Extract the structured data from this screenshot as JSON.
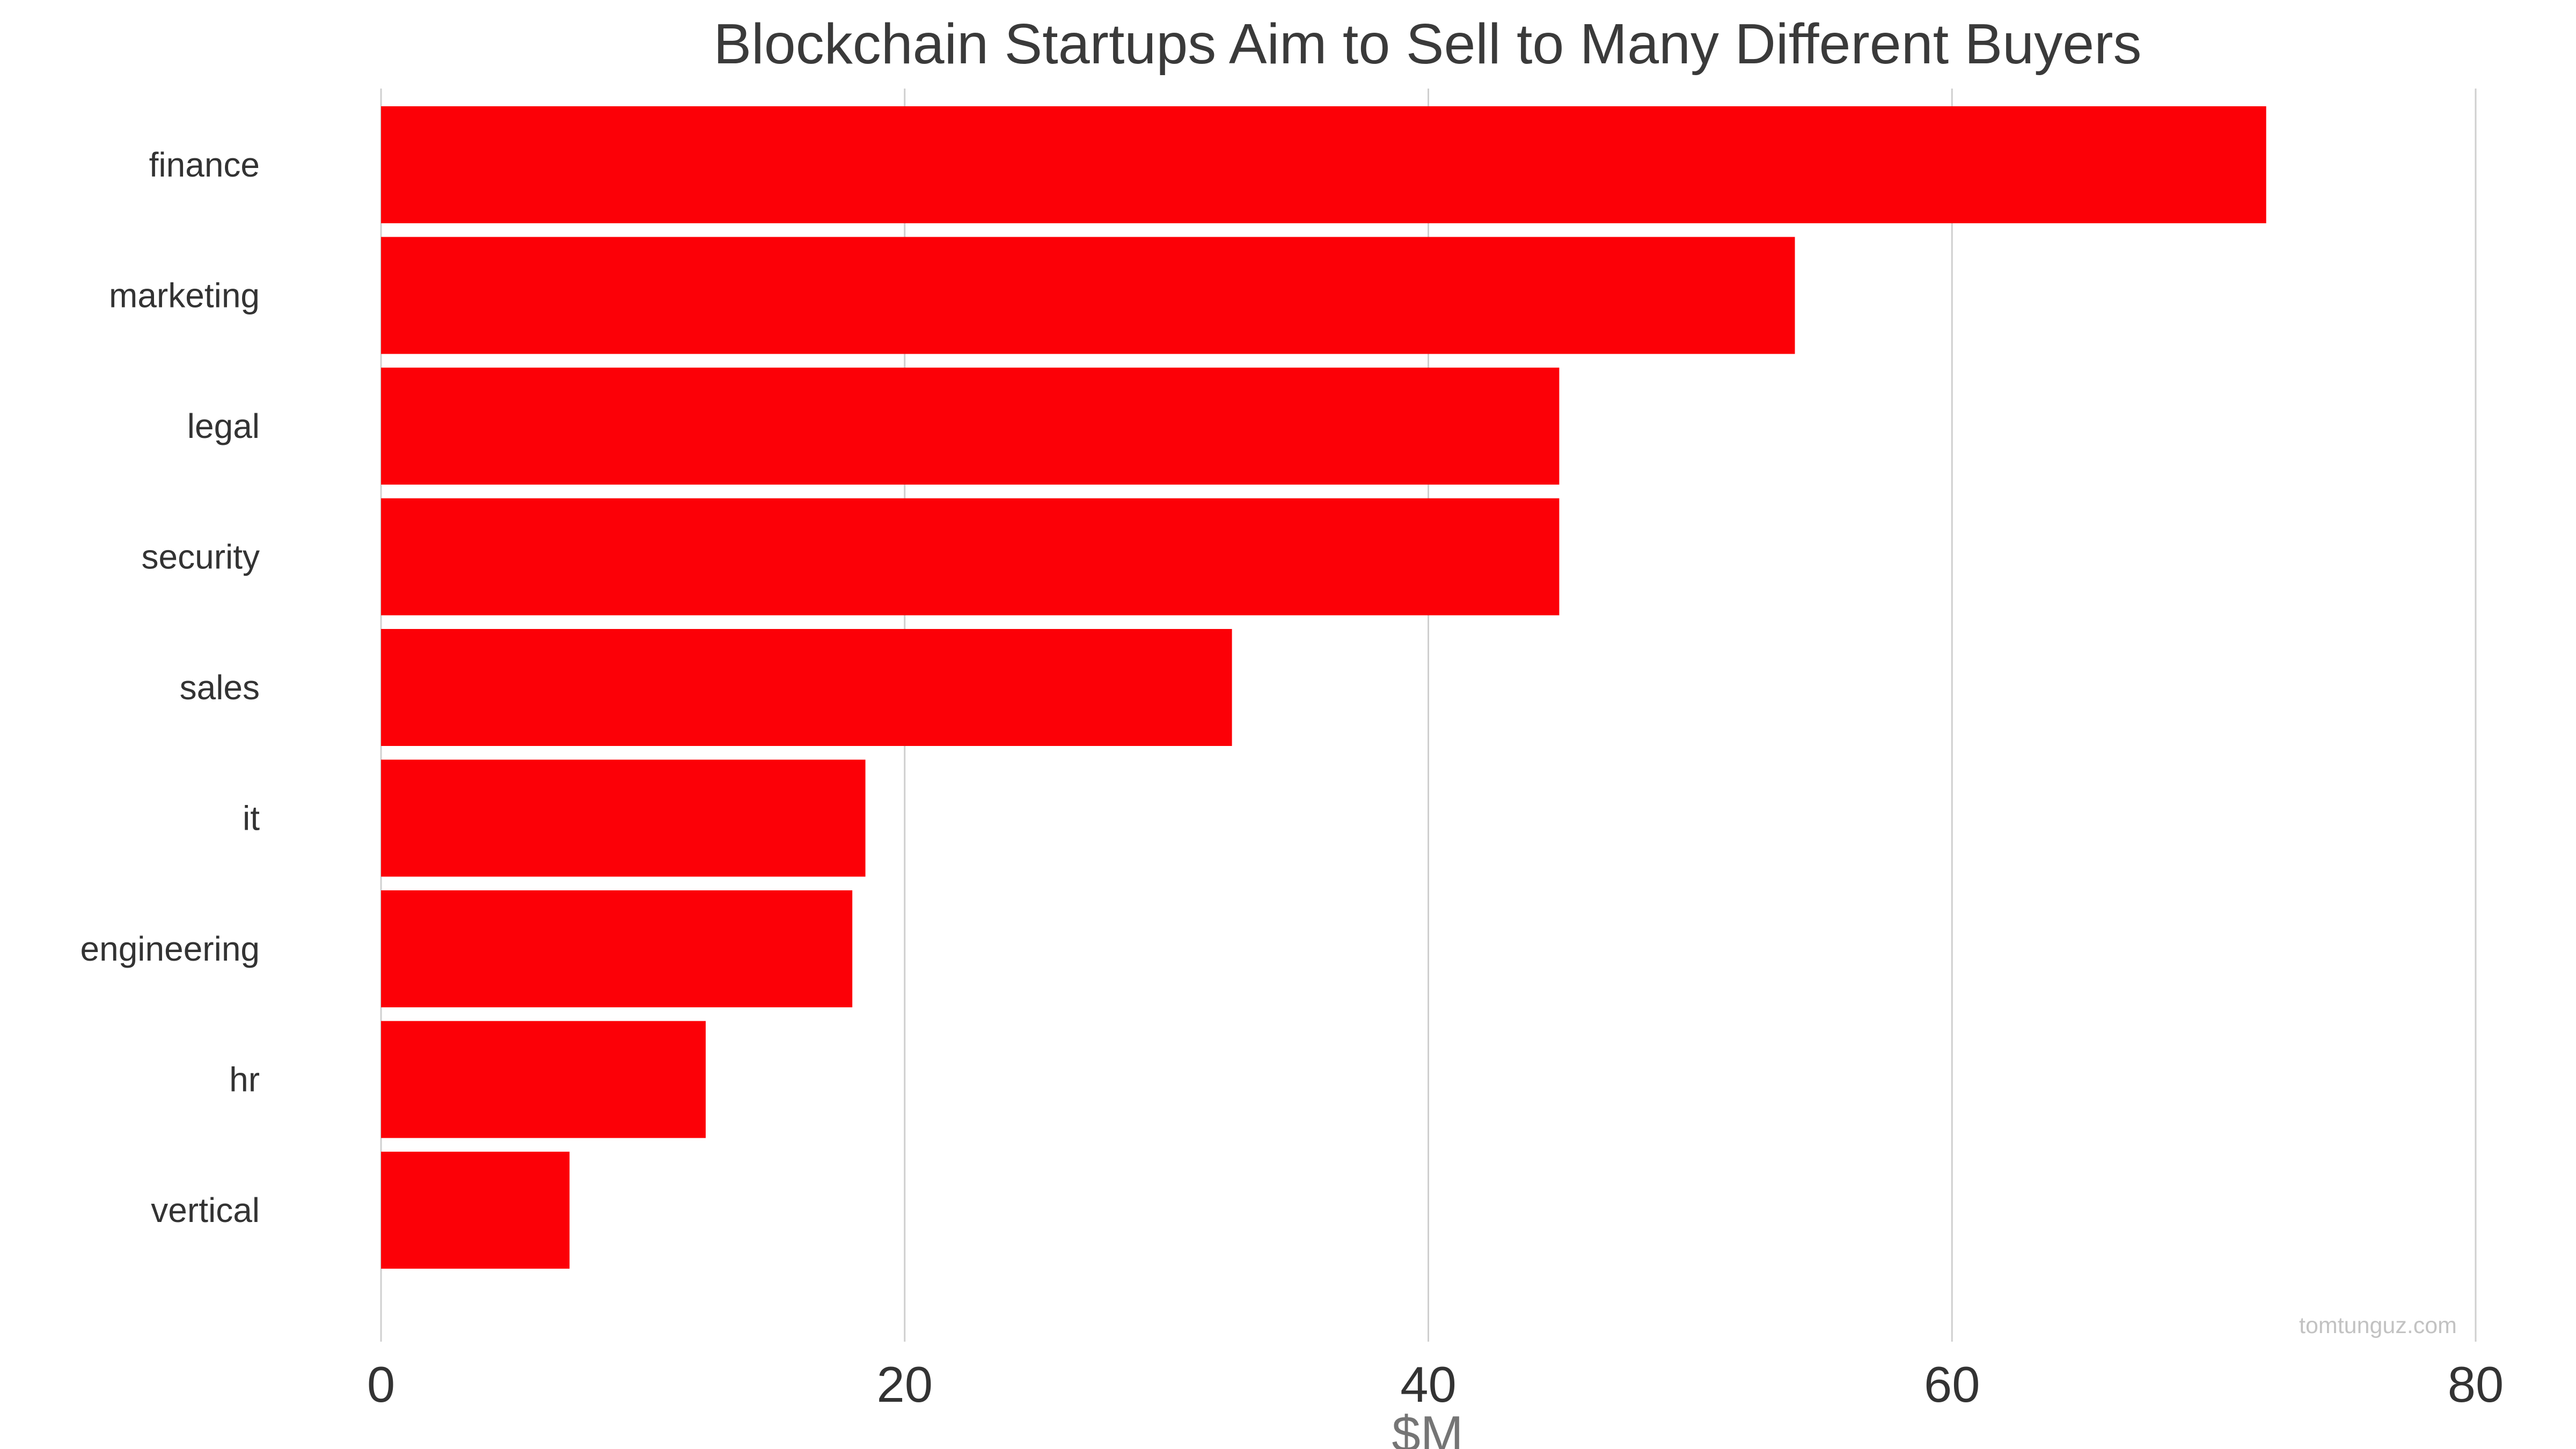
{
  "chart_data": {
    "type": "bar",
    "orientation": "horizontal",
    "title": "Blockchain Startups Aim to Sell to Many Different Buyers",
    "xlabel": "$M",
    "ylabel": "",
    "categories": [
      "finance",
      "marketing",
      "legal",
      "security",
      "sales",
      "it",
      "engineering",
      "hr",
      "vertical"
    ],
    "values": [
      72,
      54,
      45,
      45,
      32.5,
      18.5,
      18,
      12.4,
      7.2
    ],
    "xlim": [
      0,
      80
    ],
    "xticks": [
      0,
      20,
      40,
      60,
      80
    ],
    "grid": "vertical",
    "legend": "none",
    "bar_color": "#fc0007",
    "watermark": "tomtunguz.com"
  }
}
